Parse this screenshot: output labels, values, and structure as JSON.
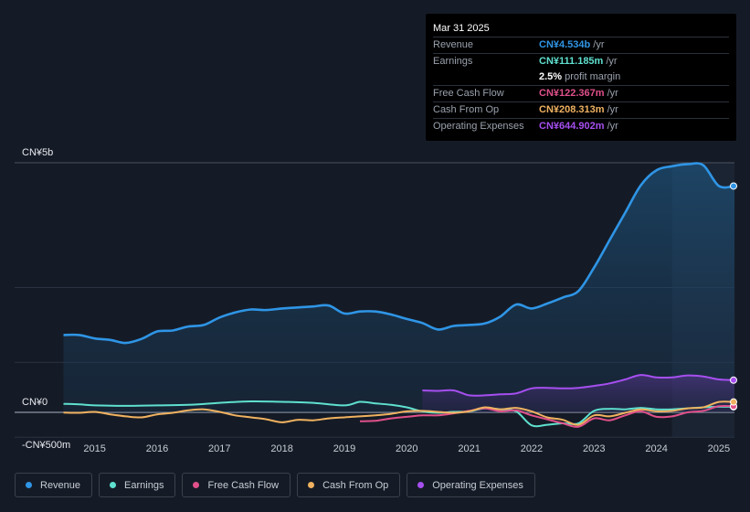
{
  "tooltip": {
    "date": "Mar 31 2025",
    "rows": [
      {
        "label": "Revenue",
        "value": "CN¥4.534b",
        "suffix": "/yr",
        "color": "#2f95e6"
      },
      {
        "label": "Earnings",
        "value": "CN¥111.185m",
        "suffix": "/yr",
        "color": "#5fe0cf"
      },
      {
        "label": "",
        "value": "2.5%",
        "suffix": "profit margin",
        "color": "#ffffff"
      },
      {
        "label": "Free Cash Flow",
        "value": "CN¥122.367m",
        "suffix": "/yr",
        "color": "#e0508a"
      },
      {
        "label": "Cash From Op",
        "value": "CN¥208.313m",
        "suffix": "/yr",
        "color": "#f0b260"
      },
      {
        "label": "Operating Expenses",
        "value": "CN¥644.902m",
        "suffix": "/yr",
        "color": "#a64ff0"
      }
    ]
  },
  "legend": [
    {
      "label": "Revenue",
      "color": "#2f95e6"
    },
    {
      "label": "Earnings",
      "color": "#5fe0cf"
    },
    {
      "label": "Free Cash Flow",
      "color": "#e0508a"
    },
    {
      "label": "Cash From Op",
      "color": "#f0b260"
    },
    {
      "label": "Operating Expenses",
      "color": "#a64ff0"
    }
  ],
  "chart_data": {
    "type": "area",
    "unit": "CN¥m",
    "y_ticks": [
      {
        "label": "CN¥5b",
        "value": 5000
      },
      {
        "label": "CN¥0",
        "value": 0
      },
      {
        "label": "-CN¥500m",
        "value": -500
      }
    ],
    "ylim": [
      -500,
      5000
    ],
    "xlim": [
      2014.2,
      2025.25
    ],
    "x_ticks": [
      "2015",
      "2016",
      "2017",
      "2018",
      "2019",
      "2020",
      "2021",
      "2022",
      "2023",
      "2024",
      "2025"
    ],
    "highlight_from": 2024.25,
    "series": [
      {
        "name": "Revenue",
        "color": "#2f95e6",
        "area": true,
        "points": [
          [
            2014.5,
            1550
          ],
          [
            2014.75,
            1550
          ],
          [
            2015.0,
            1480
          ],
          [
            2015.25,
            1450
          ],
          [
            2015.5,
            1390
          ],
          [
            2015.75,
            1470
          ],
          [
            2016.0,
            1620
          ],
          [
            2016.25,
            1640
          ],
          [
            2016.5,
            1720
          ],
          [
            2016.75,
            1750
          ],
          [
            2017.0,
            1900
          ],
          [
            2017.25,
            2000
          ],
          [
            2017.5,
            2060
          ],
          [
            2017.75,
            2050
          ],
          [
            2018.0,
            2080
          ],
          [
            2018.25,
            2100
          ],
          [
            2018.5,
            2120
          ],
          [
            2018.75,
            2140
          ],
          [
            2019.0,
            1980
          ],
          [
            2019.25,
            2020
          ],
          [
            2019.5,
            2020
          ],
          [
            2019.75,
            1960
          ],
          [
            2020.0,
            1870
          ],
          [
            2020.25,
            1790
          ],
          [
            2020.5,
            1660
          ],
          [
            2020.75,
            1730
          ],
          [
            2021.0,
            1750
          ],
          [
            2021.25,
            1780
          ],
          [
            2021.5,
            1920
          ],
          [
            2021.75,
            2160
          ],
          [
            2022.0,
            2080
          ],
          [
            2022.25,
            2180
          ],
          [
            2022.5,
            2300
          ],
          [
            2022.75,
            2430
          ],
          [
            2023.0,
            2900
          ],
          [
            2023.25,
            3450
          ],
          [
            2023.5,
            4000
          ],
          [
            2023.75,
            4550
          ],
          [
            2024.0,
            4850
          ],
          [
            2024.25,
            4930
          ],
          [
            2024.5,
            4970
          ],
          [
            2024.75,
            4950
          ],
          [
            2025.0,
            4534
          ],
          [
            2025.25,
            4534
          ]
        ]
      },
      {
        "name": "Earnings",
        "color": "#5fe0cf",
        "area": false,
        "points": [
          [
            2014.5,
            170
          ],
          [
            2014.75,
            160
          ],
          [
            2015.0,
            140
          ],
          [
            2015.5,
            130
          ],
          [
            2016.0,
            140
          ],
          [
            2016.5,
            150
          ],
          [
            2017.0,
            190
          ],
          [
            2017.5,
            220
          ],
          [
            2018.0,
            210
          ],
          [
            2018.5,
            190
          ],
          [
            2019.0,
            140
          ],
          [
            2019.25,
            210
          ],
          [
            2019.5,
            180
          ],
          [
            2019.75,
            150
          ],
          [
            2020.0,
            100
          ],
          [
            2020.25,
            20
          ],
          [
            2020.5,
            -10
          ],
          [
            2020.75,
            10
          ],
          [
            2021.0,
            20
          ],
          [
            2021.25,
            80
          ],
          [
            2021.5,
            60
          ],
          [
            2021.75,
            20
          ],
          [
            2022.0,
            -260
          ],
          [
            2022.25,
            -250
          ],
          [
            2022.5,
            -220
          ],
          [
            2022.75,
            -220
          ],
          [
            2023.0,
            30
          ],
          [
            2023.25,
            70
          ],
          [
            2023.5,
            60
          ],
          [
            2023.75,
            90
          ],
          [
            2024.0,
            60
          ],
          [
            2024.25,
            60
          ],
          [
            2024.5,
            80
          ],
          [
            2024.75,
            100
          ],
          [
            2025.0,
            111
          ],
          [
            2025.25,
            111
          ]
        ]
      },
      {
        "name": "Free Cash Flow",
        "color": "#e0508a",
        "area": false,
        "points": [
          [
            2019.25,
            -180
          ],
          [
            2019.5,
            -170
          ],
          [
            2019.75,
            -120
          ],
          [
            2020.0,
            -90
          ],
          [
            2020.25,
            -60
          ],
          [
            2020.5,
            -60
          ],
          [
            2020.75,
            -20
          ],
          [
            2021.0,
            30
          ],
          [
            2021.25,
            80
          ],
          [
            2021.5,
            20
          ],
          [
            2021.75,
            40
          ],
          [
            2022.0,
            -60
          ],
          [
            2022.25,
            -140
          ],
          [
            2022.5,
            -220
          ],
          [
            2022.75,
            -290
          ],
          [
            2023.0,
            -120
          ],
          [
            2023.25,
            -160
          ],
          [
            2023.5,
            -60
          ],
          [
            2023.75,
            20
          ],
          [
            2024.0,
            -90
          ],
          [
            2024.25,
            -80
          ],
          [
            2024.5,
            0
          ],
          [
            2024.75,
            30
          ],
          [
            2025.0,
            122
          ],
          [
            2025.25,
            122
          ]
        ]
      },
      {
        "name": "Cash From Op",
        "color": "#f0b260",
        "area": false,
        "points": [
          [
            2014.5,
            -5
          ],
          [
            2014.75,
            -10
          ],
          [
            2015.0,
            10
          ],
          [
            2015.25,
            -40
          ],
          [
            2015.5,
            -80
          ],
          [
            2015.75,
            -100
          ],
          [
            2016.0,
            -40
          ],
          [
            2016.25,
            -10
          ],
          [
            2016.5,
            40
          ],
          [
            2016.75,
            60
          ],
          [
            2017.0,
            10
          ],
          [
            2017.25,
            -60
          ],
          [
            2017.5,
            -100
          ],
          [
            2017.75,
            -140
          ],
          [
            2018.0,
            -200
          ],
          [
            2018.25,
            -150
          ],
          [
            2018.5,
            -160
          ],
          [
            2018.75,
            -120
          ],
          [
            2019.0,
            -100
          ],
          [
            2019.25,
            -80
          ],
          [
            2019.5,
            -60
          ],
          [
            2019.75,
            -30
          ],
          [
            2020.0,
            20
          ],
          [
            2020.25,
            30
          ],
          [
            2020.5,
            10
          ],
          [
            2020.75,
            -10
          ],
          [
            2021.0,
            20
          ],
          [
            2021.25,
            100
          ],
          [
            2021.5,
            60
          ],
          [
            2021.75,
            90
          ],
          [
            2022.0,
            20
          ],
          [
            2022.25,
            -100
          ],
          [
            2022.5,
            -150
          ],
          [
            2022.75,
            -250
          ],
          [
            2023.0,
            -60
          ],
          [
            2023.25,
            -80
          ],
          [
            2023.5,
            -10
          ],
          [
            2023.75,
            60
          ],
          [
            2024.0,
            20
          ],
          [
            2024.25,
            30
          ],
          [
            2024.5,
            80
          ],
          [
            2024.75,
            100
          ],
          [
            2025.0,
            208
          ],
          [
            2025.25,
            208
          ]
        ]
      },
      {
        "name": "Operating Expenses",
        "color": "#a64ff0",
        "area": true,
        "points": [
          [
            2020.25,
            440
          ],
          [
            2020.5,
            430
          ],
          [
            2020.75,
            440
          ],
          [
            2021.0,
            340
          ],
          [
            2021.25,
            340
          ],
          [
            2021.5,
            360
          ],
          [
            2021.75,
            380
          ],
          [
            2022.0,
            480
          ],
          [
            2022.25,
            490
          ],
          [
            2022.5,
            480
          ],
          [
            2022.75,
            490
          ],
          [
            2023.0,
            530
          ],
          [
            2023.25,
            580
          ],
          [
            2023.5,
            660
          ],
          [
            2023.75,
            750
          ],
          [
            2024.0,
            700
          ],
          [
            2024.25,
            700
          ],
          [
            2024.5,
            740
          ],
          [
            2024.75,
            720
          ],
          [
            2025.0,
            660
          ],
          [
            2025.25,
            645
          ]
        ]
      }
    ]
  }
}
